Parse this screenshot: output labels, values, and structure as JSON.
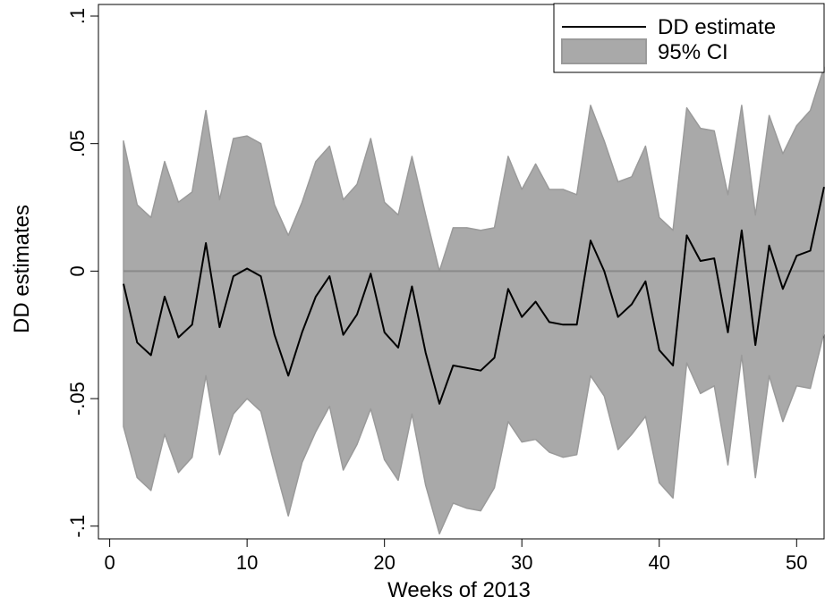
{
  "chart_data": {
    "type": "line",
    "xlabel": "Weeks of 2013",
    "ylabel": "DD estimates",
    "xlim": [
      0,
      52
    ],
    "ylim": [
      -0.105,
      0.1
    ],
    "xticks": [
      0,
      10,
      20,
      30,
      40,
      50
    ],
    "xtick_labels": [
      "0",
      "10",
      "20",
      "30",
      "40",
      "50"
    ],
    "yticks": [
      -0.1,
      -0.05,
      0,
      0.05,
      0.1
    ],
    "ytick_labels": [
      "-.1",
      "-.05",
      "0",
      ".05",
      ".1"
    ],
    "grid": false,
    "legend_position": "top-right",
    "reference_line": 0,
    "x": [
      1,
      2,
      3,
      4,
      5,
      6,
      7,
      8,
      9,
      10,
      11,
      12,
      13,
      14,
      15,
      16,
      17,
      18,
      19,
      20,
      21,
      22,
      23,
      24,
      25,
      26,
      27,
      28,
      29,
      30,
      31,
      32,
      33,
      34,
      35,
      36,
      37,
      38,
      39,
      40,
      41,
      42,
      43,
      44,
      45,
      46,
      47,
      48,
      49,
      50,
      51,
      52
    ],
    "series": [
      {
        "name": "DD estimate",
        "type": "line",
        "color": "#000000",
        "values": [
          -0.005,
          -0.028,
          -0.033,
          -0.01,
          -0.026,
          -0.021,
          0.011,
          -0.022,
          -0.002,
          0.001,
          -0.002,
          -0.025,
          -0.041,
          -0.024,
          -0.01,
          -0.002,
          -0.025,
          -0.017,
          -0.001,
          -0.024,
          -0.03,
          -0.006,
          -0.032,
          -0.052,
          -0.037,
          -0.038,
          -0.039,
          -0.034,
          -0.007,
          -0.018,
          -0.012,
          -0.02,
          -0.021,
          -0.021,
          0.012,
          0.0,
          -0.018,
          -0.013,
          -0.004,
          -0.031,
          -0.037,
          0.014,
          0.004,
          0.005,
          -0.024,
          0.016,
          -0.029,
          0.01,
          -0.007,
          0.006,
          0.008,
          0.033
        ]
      },
      {
        "name": "95% CI",
        "type": "area",
        "color": "#a9a9a9",
        "upper": [
          0.051,
          0.026,
          0.021,
          0.043,
          0.027,
          0.031,
          0.063,
          0.028,
          0.052,
          0.053,
          0.05,
          0.026,
          0.014,
          0.027,
          0.043,
          0.049,
          0.028,
          0.034,
          0.052,
          0.027,
          0.022,
          0.045,
          0.022,
          0.0,
          0.017,
          0.017,
          0.016,
          0.017,
          0.045,
          0.032,
          0.042,
          0.032,
          0.032,
          0.03,
          0.065,
          0.051,
          0.035,
          0.037,
          0.049,
          0.021,
          0.016,
          0.064,
          0.056,
          0.055,
          0.03,
          0.065,
          0.022,
          0.061,
          0.046,
          0.057,
          0.063,
          0.08
        ],
        "lower": [
          -0.061,
          -0.081,
          -0.086,
          -0.064,
          -0.079,
          -0.073,
          -0.041,
          -0.072,
          -0.056,
          -0.05,
          -0.055,
          -0.076,
          -0.096,
          -0.075,
          -0.063,
          -0.053,
          -0.078,
          -0.068,
          -0.054,
          -0.074,
          -0.082,
          -0.056,
          -0.084,
          -0.103,
          -0.091,
          -0.093,
          -0.094,
          -0.085,
          -0.059,
          -0.067,
          -0.066,
          -0.071,
          -0.073,
          -0.072,
          -0.041,
          -0.049,
          -0.07,
          -0.064,
          -0.057,
          -0.083,
          -0.089,
          -0.036,
          -0.048,
          -0.045,
          -0.076,
          -0.033,
          -0.081,
          -0.041,
          -0.059,
          -0.045,
          -0.046,
          -0.024
        ]
      }
    ]
  },
  "colors": {
    "ci_fill": "#a9a9a9",
    "ci_edge": "#9a9a9a",
    "estimate_line": "#000000",
    "zero_line": "#8a8a8a"
  }
}
